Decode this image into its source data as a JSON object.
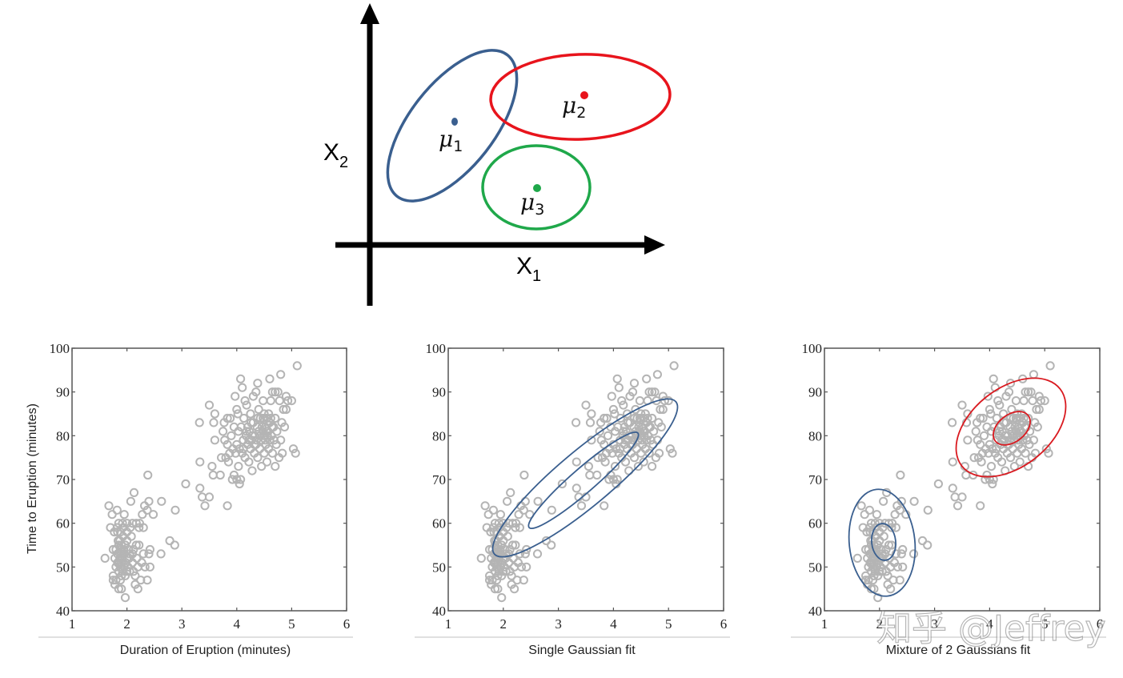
{
  "diagram": {
    "x_axis_label": "X",
    "x_axis_sub": "1",
    "y_axis_label": "X",
    "y_axis_sub": "2",
    "clusters": [
      {
        "name": "mu1",
        "symbol": "μ",
        "sub": "1",
        "color": "#3a5f8f"
      },
      {
        "name": "mu2",
        "symbol": "μ",
        "sub": "2",
        "color": "#e8141c"
      },
      {
        "name": "mu3",
        "symbol": "μ",
        "sub": "3",
        "color": "#1fa84a"
      }
    ]
  },
  "watermark": "知乎 @Jeffrey",
  "colors": {
    "marker": "#b4b4b4",
    "axis": "#555555",
    "blue_contour": "#3a5f8f",
    "red_contour": "#d9191f"
  },
  "chart_data": [
    {
      "type": "scatter",
      "title": "",
      "caption": "Duration of Eruption (minutes)",
      "xlabel": "Duration of Eruption (minutes)",
      "ylabel": "Time to Eruption (minutes)",
      "xlim": [
        1,
        6
      ],
      "ylim": [
        40,
        100
      ],
      "xticks": [
        "1",
        "2",
        "3",
        "4",
        "5",
        "6"
      ],
      "yticks": [
        "40",
        "50",
        "60",
        "70",
        "80",
        "90",
        "100"
      ],
      "marker": "open-circle",
      "points": "shared:points"
    },
    {
      "type": "scatter",
      "caption": "Single Gaussian fit",
      "xlim": [
        1,
        6
      ],
      "ylim": [
        40,
        100
      ],
      "xticks": [
        "1",
        "2",
        "3",
        "4",
        "5",
        "6"
      ],
      "yticks": [
        "40",
        "50",
        "60",
        "70",
        "80",
        "90",
        "100"
      ],
      "points": "shared:points",
      "contours": [
        {
          "color": "#3a5f8f",
          "center": [
            3.49,
            70.9
          ],
          "level": "inner"
        },
        {
          "color": "#3a5f8f",
          "center": [
            3.49,
            70.9
          ],
          "level": "outer"
        }
      ]
    },
    {
      "type": "scatter",
      "caption": "Mixture of 2 Gaussians fit",
      "xlim": [
        1,
        6
      ],
      "ylim": [
        40,
        100
      ],
      "xticks": [
        "1",
        "2",
        "3",
        "4",
        "5",
        "6"
      ],
      "yticks": [
        "40",
        "50",
        "60",
        "70",
        "80",
        "90",
        "100"
      ],
      "points": "shared:points",
      "contours": [
        {
          "color": "#3a5f8f",
          "center": [
            2.05,
            55.8
          ],
          "level": "inner"
        },
        {
          "color": "#3a5f8f",
          "center": [
            2.05,
            55.8
          ],
          "level": "outer"
        },
        {
          "color": "#d9191f",
          "center": [
            4.4,
            82.0
          ],
          "level": "inner"
        },
        {
          "color": "#d9191f",
          "center": [
            4.4,
            82.0
          ],
          "level": "outer"
        }
      ]
    }
  ],
  "points": [
    [
      1.6,
      52
    ],
    [
      1.67,
      64
    ],
    [
      1.7,
      59
    ],
    [
      1.73,
      62
    ],
    [
      1.75,
      54
    ],
    [
      1.75,
      48
    ],
    [
      1.75,
      47
    ],
    [
      1.77,
      58
    ],
    [
      1.78,
      52
    ],
    [
      1.78,
      46
    ],
    [
      1.8,
      54
    ],
    [
      1.8,
      47
    ],
    [
      1.82,
      59
    ],
    [
      1.82,
      63
    ],
    [
      1.83,
      51
    ],
    [
      1.83,
      53
    ],
    [
      1.83,
      58
    ],
    [
      1.85,
      45
    ],
    [
      1.85,
      49
    ],
    [
      1.85,
      55
    ],
    [
      1.85,
      60
    ],
    [
      1.87,
      52
    ],
    [
      1.87,
      56
    ],
    [
      1.88,
      50
    ],
    [
      1.88,
      54
    ],
    [
      1.88,
      58
    ],
    [
      1.9,
      45
    ],
    [
      1.9,
      48
    ],
    [
      1.9,
      51
    ],
    [
      1.9,
      53
    ],
    [
      1.9,
      55
    ],
    [
      1.92,
      49
    ],
    [
      1.92,
      52
    ],
    [
      1.93,
      57
    ],
    [
      1.93,
      59
    ],
    [
      1.95,
      50
    ],
    [
      1.95,
      53
    ],
    [
      1.95,
      62
    ],
    [
      1.97,
      43
    ],
    [
      1.97,
      48
    ],
    [
      1.97,
      55
    ],
    [
      2.0,
      49
    ],
    [
      2.0,
      52
    ],
    [
      2.0,
      56
    ],
    [
      2.0,
      58
    ],
    [
      2.0,
      60
    ],
    [
      2.02,
      50
    ],
    [
      2.03,
      54
    ],
    [
      2.05,
      49
    ],
    [
      2.05,
      53
    ],
    [
      2.07,
      65
    ],
    [
      2.08,
      57
    ],
    [
      2.1,
      51
    ],
    [
      2.1,
      53
    ],
    [
      2.1,
      60
    ],
    [
      2.12,
      49
    ],
    [
      2.13,
      67
    ],
    [
      2.15,
      46
    ],
    [
      2.15,
      48
    ],
    [
      2.17,
      60
    ],
    [
      2.17,
      55
    ],
    [
      2.18,
      52
    ],
    [
      2.2,
      45
    ],
    [
      2.2,
      50
    ],
    [
      2.22,
      55
    ],
    [
      2.22,
      59
    ],
    [
      2.23,
      60
    ],
    [
      2.25,
      47
    ],
    [
      2.27,
      51
    ],
    [
      2.28,
      62
    ],
    [
      2.3,
      53
    ],
    [
      2.3,
      59
    ],
    [
      2.32,
      64
    ],
    [
      2.33,
      50
    ],
    [
      2.37,
      47
    ],
    [
      2.37,
      63
    ],
    [
      2.38,
      71
    ],
    [
      2.4,
      53
    ],
    [
      2.4,
      65
    ],
    [
      2.42,
      50
    ],
    [
      2.42,
      54
    ],
    [
      2.48,
      62
    ],
    [
      2.62,
      53
    ],
    [
      2.63,
      65
    ],
    [
      2.78,
      56
    ],
    [
      2.87,
      55
    ],
    [
      2.88,
      63
    ],
    [
      3.07,
      69
    ],
    [
      3.32,
      83
    ],
    [
      3.33,
      74
    ],
    [
      3.33,
      68
    ],
    [
      3.37,
      66
    ],
    [
      3.42,
      64
    ],
    [
      3.5,
      66
    ],
    [
      3.5,
      87
    ],
    [
      3.55,
      73
    ],
    [
      3.57,
      71
    ],
    [
      3.58,
      83
    ],
    [
      3.6,
      85
    ],
    [
      3.6,
      79
    ],
    [
      3.7,
      71
    ],
    [
      3.72,
      75
    ],
    [
      3.75,
      81
    ],
    [
      3.77,
      83
    ],
    [
      3.78,
      79
    ],
    [
      3.8,
      75
    ],
    [
      3.83,
      64
    ],
    [
      3.83,
      84
    ],
    [
      3.83,
      78
    ],
    [
      3.85,
      74
    ],
    [
      3.87,
      76
    ],
    [
      3.88,
      84
    ],
    [
      3.9,
      80
    ],
    [
      3.92,
      70
    ],
    [
      3.93,
      77
    ],
    [
      3.95,
      71
    ],
    [
      3.95,
      82
    ],
    [
      3.97,
      89
    ],
    [
      3.98,
      76
    ],
    [
      4.0,
      70
    ],
    [
      4.0,
      78
    ],
    [
      4.0,
      86
    ],
    [
      4.02,
      85
    ],
    [
      4.03,
      81
    ],
    [
      4.03,
      73
    ],
    [
      4.05,
      69
    ],
    [
      4.05,
      77
    ],
    [
      4.07,
      93
    ],
    [
      4.07,
      70
    ],
    [
      4.08,
      82
    ],
    [
      4.1,
      76
    ],
    [
      4.1,
      91
    ],
    [
      4.12,
      79
    ],
    [
      4.13,
      84
    ],
    [
      4.15,
      88
    ],
    [
      4.15,
      75
    ],
    [
      4.17,
      80
    ],
    [
      4.18,
      87
    ],
    [
      4.2,
      78
    ],
    [
      4.2,
      82
    ],
    [
      4.22,
      74
    ],
    [
      4.23,
      81
    ],
    [
      4.25,
      77
    ],
    [
      4.25,
      85
    ],
    [
      4.27,
      79
    ],
    [
      4.28,
      72
    ],
    [
      4.3,
      83
    ],
    [
      4.3,
      89
    ],
    [
      4.32,
      76
    ],
    [
      4.33,
      80
    ],
    [
      4.35,
      90
    ],
    [
      4.35,
      78
    ],
    [
      4.37,
      82
    ],
    [
      4.38,
      92
    ],
    [
      4.38,
      75
    ],
    [
      4.4,
      81
    ],
    [
      4.4,
      86
    ],
    [
      4.42,
      77
    ],
    [
      4.43,
      84
    ],
    [
      4.45,
      79
    ],
    [
      4.45,
      73
    ],
    [
      4.47,
      83
    ],
    [
      4.48,
      88
    ],
    [
      4.5,
      80
    ],
    [
      4.5,
      76
    ],
    [
      4.5,
      85
    ],
    [
      4.52,
      82
    ],
    [
      4.53,
      78
    ],
    [
      4.55,
      84
    ],
    [
      4.55,
      74
    ],
    [
      4.57,
      81
    ],
    [
      4.58,
      77
    ],
    [
      4.6,
      93
    ],
    [
      4.6,
      83
    ],
    [
      4.6,
      79
    ],
    [
      4.62,
      88
    ],
    [
      4.63,
      80
    ],
    [
      4.65,
      90
    ],
    [
      4.65,
      76
    ],
    [
      4.67,
      82
    ],
    [
      4.7,
      73
    ],
    [
      4.7,
      90
    ],
    [
      4.7,
      84
    ],
    [
      4.72,
      78
    ],
    [
      4.73,
      81
    ],
    [
      4.75,
      90
    ],
    [
      4.77,
      75
    ],
    [
      4.78,
      88
    ],
    [
      4.8,
      94
    ],
    [
      4.8,
      79
    ],
    [
      4.82,
      83
    ],
    [
      4.83,
      76
    ],
    [
      4.85,
      86
    ],
    [
      4.87,
      82
    ],
    [
      4.9,
      89
    ],
    [
      4.9,
      86
    ],
    [
      4.93,
      88
    ],
    [
      5.0,
      88
    ],
    [
      5.03,
      77
    ],
    [
      5.07,
      76
    ],
    [
      5.1,
      96
    ],
    [
      4.48,
      81
    ],
    [
      4.52,
      79
    ],
    [
      4.42,
      80
    ],
    [
      4.36,
      79
    ],
    [
      4.28,
      80
    ],
    [
      4.46,
      82
    ],
    [
      4.56,
      80
    ],
    [
      4.62,
      84
    ],
    [
      4.68,
      79
    ],
    [
      4.58,
      85
    ],
    [
      4.48,
      84
    ],
    [
      4.38,
      84
    ],
    [
      4.32,
      78
    ],
    [
      4.22,
      79
    ],
    [
      4.12,
      77
    ],
    [
      4.18,
      81
    ],
    [
      4.26,
      83
    ],
    [
      4.54,
      81
    ],
    [
      4.64,
      82
    ],
    [
      1.86,
      51
    ],
    [
      1.94,
      54
    ],
    [
      1.98,
      51
    ],
    [
      2.04,
      52
    ],
    [
      1.84,
      56
    ],
    [
      1.92,
      60
    ],
    [
      2.06,
      59
    ],
    [
      1.8,
      50
    ],
    [
      1.88,
      47
    ],
    [
      2.12,
      54
    ]
  ]
}
